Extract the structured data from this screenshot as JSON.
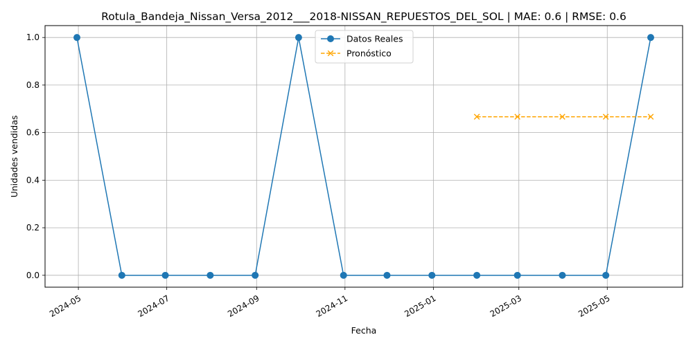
{
  "chart_data": {
    "type": "line",
    "title": "Rotula_Bandeja_Nissan_Versa_2012___2018-NISSAN_REPUESTOS_DEL_SOL | MAE: 0.6 | RMSE: 0.6",
    "xlabel": "Fecha",
    "ylabel": "Unidades vendidas",
    "xlim": [
      "2024-04-08",
      "2025-06-22"
    ],
    "ylim": [
      -0.05,
      1.05
    ],
    "x_ticks": [
      {
        "date": "2024-05-01",
        "label": "2024-05"
      },
      {
        "date": "2024-07-01",
        "label": "2024-07"
      },
      {
        "date": "2024-09-01",
        "label": "2024-09"
      },
      {
        "date": "2024-11-01",
        "label": "2024-11"
      },
      {
        "date": "2025-01-01",
        "label": "2025-01"
      },
      {
        "date": "2025-03-01",
        "label": "2025-03"
      },
      {
        "date": "2025-05-01",
        "label": "2025-05"
      }
    ],
    "y_ticks": [
      {
        "value": 0.0,
        "label": "0.0"
      },
      {
        "value": 0.2,
        "label": "0.2"
      },
      {
        "value": 0.4,
        "label": "0.4"
      },
      {
        "value": 0.6,
        "label": "0.6"
      },
      {
        "value": 0.8,
        "label": "0.8"
      },
      {
        "value": 1.0,
        "label": "1.0"
      }
    ],
    "grid": true,
    "legend_position": "top-center",
    "series": [
      {
        "name": "Datos Reales",
        "color": "#1f77b4",
        "marker": "circle",
        "line_style": "solid",
        "x": [
          "2024-04-30",
          "2024-05-31",
          "2024-06-30",
          "2024-07-31",
          "2024-08-31",
          "2024-09-30",
          "2024-10-31",
          "2024-11-30",
          "2024-12-31",
          "2025-01-31",
          "2025-02-28",
          "2025-03-31",
          "2025-04-30",
          "2025-05-31"
        ],
        "values": [
          1,
          0,
          0,
          0,
          0,
          1,
          0,
          0,
          0,
          0,
          0,
          0,
          0,
          1
        ]
      },
      {
        "name": "Pronóstico",
        "color": "#ffa500",
        "marker": "x",
        "line_style": "dashed",
        "x": [
          "2025-01-31",
          "2025-02-28",
          "2025-03-31",
          "2025-04-30",
          "2025-05-31"
        ],
        "values": [
          0.6667,
          0.6667,
          0.6667,
          0.6667,
          0.6667
        ]
      }
    ]
  }
}
